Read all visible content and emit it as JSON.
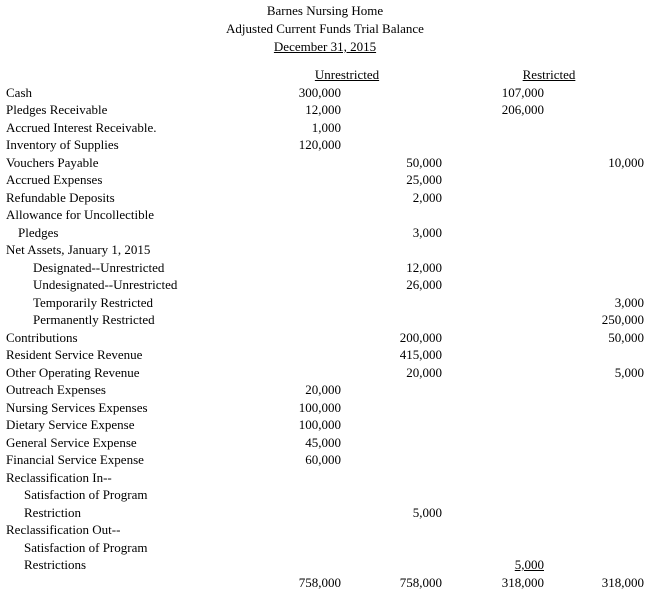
{
  "header": {
    "company": "Barnes Nursing Home",
    "statement": "Adjusted Current Funds Trial Balance",
    "date": "December 31, 2015"
  },
  "table": {
    "headers": {
      "unrestricted": "Unrestricted",
      "restricted": "Restricted"
    },
    "rows": [
      {
        "label": "Cash",
        "indent": 0,
        "unrestricted_debit": "300,000",
        "unrestricted_credit": "",
        "restricted_debit": "107,000",
        "restricted_credit": ""
      },
      {
        "label": "Pledges Receivable",
        "indent": 0,
        "unrestricted_debit": "12,000",
        "unrestricted_credit": "",
        "restricted_debit": "206,000",
        "restricted_credit": ""
      },
      {
        "label": "Accrued Interest Receivable.",
        "indent": 0,
        "unrestricted_debit": "1,000",
        "unrestricted_credit": "",
        "restricted_debit": "",
        "restricted_credit": ""
      },
      {
        "label": "Inventory of Supplies",
        "indent": 0,
        "unrestricted_debit": "120,000",
        "unrestricted_credit": "",
        "restricted_debit": "",
        "restricted_credit": ""
      },
      {
        "label": "Vouchers Payable",
        "indent": 0,
        "unrestricted_debit": "",
        "unrestricted_credit": "50,000",
        "restricted_debit": "",
        "restricted_credit": "10,000"
      },
      {
        "label": "Accrued Expenses",
        "indent": 0,
        "unrestricted_debit": "",
        "unrestricted_credit": "25,000",
        "restricted_debit": "",
        "restricted_credit": ""
      },
      {
        "label": "Refundable Deposits",
        "indent": 0,
        "unrestricted_debit": "",
        "unrestricted_credit": "2,000",
        "restricted_debit": "",
        "restricted_credit": ""
      },
      {
        "label": "Allowance for Uncollectible",
        "indent": 0,
        "unrestricted_debit": "",
        "unrestricted_credit": "",
        "restricted_debit": "",
        "restricted_credit": ""
      },
      {
        "label": "Pledges",
        "indent": 1,
        "unrestricted_debit": "",
        "unrestricted_credit": "3,000",
        "restricted_debit": "",
        "restricted_credit": ""
      },
      {
        "label": "Net Assets, January 1, 2015",
        "indent": 0,
        "unrestricted_debit": "",
        "unrestricted_credit": "",
        "restricted_debit": "",
        "restricted_credit": ""
      },
      {
        "label": "Designated--Unrestricted",
        "indent": 3,
        "unrestricted_debit": "",
        "unrestricted_credit": "12,000",
        "restricted_debit": "",
        "restricted_credit": ""
      },
      {
        "label": "Undesignated--Unrestricted",
        "indent": 3,
        "unrestricted_debit": "",
        "unrestricted_credit": "26,000",
        "restricted_debit": "",
        "restricted_credit": ""
      },
      {
        "label": "Temporarily Restricted",
        "indent": 3,
        "unrestricted_debit": "",
        "unrestricted_credit": "",
        "restricted_debit": "",
        "restricted_credit": "3,000"
      },
      {
        "label": "Permanently Restricted",
        "indent": 3,
        "unrestricted_debit": "",
        "unrestricted_credit": "",
        "restricted_debit": "",
        "restricted_credit": "250,000"
      },
      {
        "label": "Contributions",
        "indent": 0,
        "unrestricted_debit": "",
        "unrestricted_credit": "200,000",
        "restricted_debit": "",
        "restricted_credit": "50,000"
      },
      {
        "label": "Resident Service Revenue",
        "indent": 0,
        "unrestricted_debit": "",
        "unrestricted_credit": "415,000",
        "restricted_debit": "",
        "restricted_credit": ""
      },
      {
        "label": "Other Operating Revenue",
        "indent": 0,
        "unrestricted_debit": "",
        "unrestricted_credit": "20,000",
        "restricted_debit": "",
        "restricted_credit": "5,000"
      },
      {
        "label": "Outreach Expenses",
        "indent": 0,
        "unrestricted_debit": "20,000",
        "unrestricted_credit": "",
        "restricted_debit": "",
        "restricted_credit": ""
      },
      {
        "label": "Nursing Services Expenses",
        "indent": 0,
        "unrestricted_debit": "100,000",
        "unrestricted_credit": "",
        "restricted_debit": "",
        "restricted_credit": ""
      },
      {
        "label": "Dietary Service Expense",
        "indent": 0,
        "unrestricted_debit": "100,000",
        "unrestricted_credit": "",
        "restricted_debit": "",
        "restricted_credit": ""
      },
      {
        "label": "General Service Expense",
        "indent": 0,
        "unrestricted_debit": "45,000",
        "unrestricted_credit": "",
        "restricted_debit": "",
        "restricted_credit": ""
      },
      {
        "label": "Financial Service Expense",
        "indent": 0,
        "unrestricted_debit": "60,000",
        "unrestricted_credit": "",
        "restricted_debit": "",
        "restricted_credit": ""
      },
      {
        "label": "Reclassification In--",
        "indent": 0,
        "unrestricted_debit": "",
        "unrestricted_credit": "",
        "restricted_debit": "",
        "restricted_credit": ""
      },
      {
        "label": "Satisfaction of Program",
        "indent": 2,
        "unrestricted_debit": "",
        "unrestricted_credit": "",
        "restricted_debit": "",
        "restricted_credit": ""
      },
      {
        "label": "Restriction",
        "indent": 2,
        "unrestricted_debit": "",
        "unrestricted_credit": "5,000",
        "restricted_debit": "",
        "restricted_credit": ""
      },
      {
        "label": "Reclassification Out--",
        "indent": 0,
        "unrestricted_debit": "",
        "unrestricted_credit": "",
        "restricted_debit": "",
        "restricted_credit": ""
      },
      {
        "label": "Satisfaction of Program",
        "indent": 2,
        "unrestricted_debit": "",
        "unrestricted_credit": "",
        "restricted_debit": "",
        "restricted_credit": ""
      },
      {
        "label": "Restrictions",
        "indent": 2,
        "unrestricted_debit": "",
        "unrestricted_credit": "",
        "restricted_debit": "5,000",
        "restricted_credit": "",
        "underline": "restricted_debit"
      }
    ],
    "totals": {
      "unrestricted_debit": "758,000",
      "unrestricted_credit": "758,000",
      "restricted_debit": "318,000",
      "restricted_credit": "318,000"
    }
  }
}
